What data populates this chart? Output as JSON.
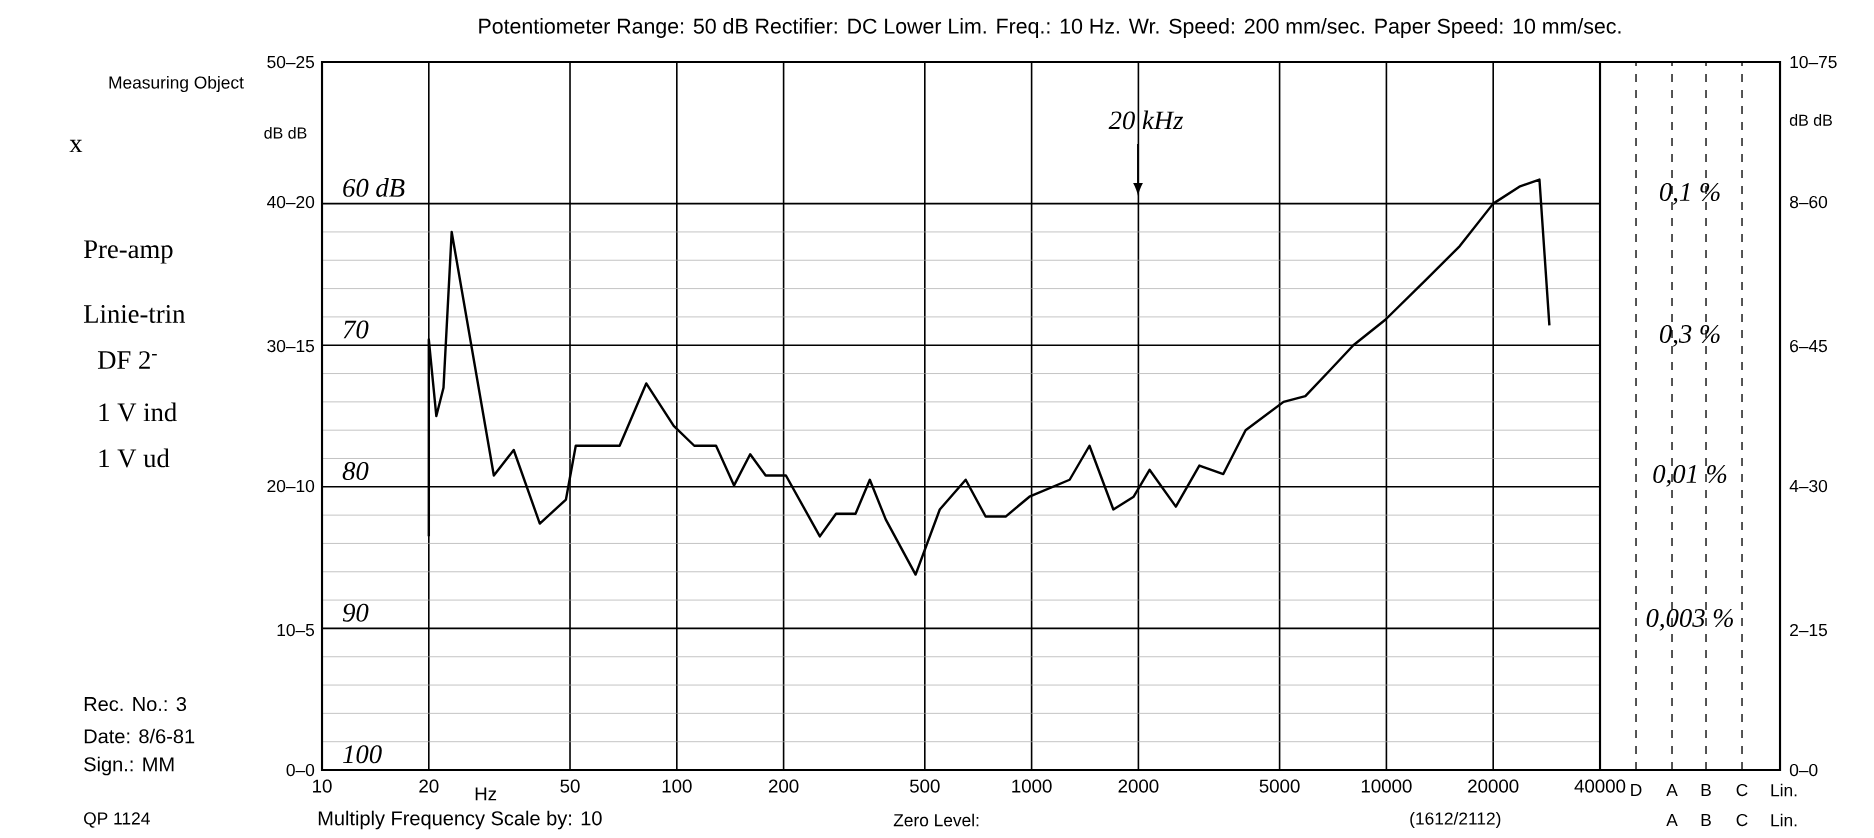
{
  "chart_data": {
    "type": "line",
    "title": "Potentiometer Range: 50 dB Rectifier: DC Lower Lim. Freq.: 10 Hz. Wr. Speed: 200 mm/sec. Paper Speed: 10 mm/sec.",
    "xlabel": "Hz",
    "ylabel": "dB dB",
    "series": [
      {
        "color": "#000000",
        "x": [
          20,
          20,
          21,
          22,
          23.2,
          30.5,
          34.7,
          41.1,
          48.7,
          51.9,
          69,
          82,
          98,
          112,
          129,
          145,
          161,
          178,
          203,
          253,
          281,
          319,
          350,
          388,
          471,
          551,
          652,
          742,
          845,
          986,
          1280,
          1456,
          1700,
          1940,
          2150,
          2550,
          2970,
          3470,
          4010,
          5130,
          5910,
          6910,
          8070,
          9930,
          12900,
          16100,
          20000,
          23700,
          27000,
          28800
        ],
        "values": [
          83.5,
          69.6,
          75,
          73,
          62.0,
          79.2,
          77.4,
          82.6,
          80.9,
          77.1,
          77.1,
          72.7,
          75.7,
          77.1,
          77.1,
          79.9,
          77.7,
          79.2,
          79.2,
          83.5,
          81.9,
          81.9,
          79.5,
          82.3,
          86.2,
          81.6,
          79.5,
          82.1,
          82.1,
          80.7,
          79.5,
          77.1,
          81.6,
          80.7,
          78.8,
          81.4,
          78.5,
          79.1,
          76.0,
          74.0,
          73.6,
          71.8,
          70.0,
          68.2,
          65.4,
          63.0,
          60.0,
          58.8,
          58.3,
          68.6
        ]
      }
    ],
    "log": "x",
    "xlim": [
      10,
      40000
    ],
    "xticks": [
      10,
      20,
      50,
      100,
      200,
      500,
      1000,
      2000,
      5000,
      10000,
      20000,
      40000
    ],
    "ylim": [
      100,
      50
    ],
    "yticks": [
      {
        "value": 60,
        "label": "60 dB"
      },
      70,
      80,
      90,
      100
    ],
    "grid": true,
    "annotations": [
      "Measuring Object",
      "x",
      "Pre-amp",
      "Linie-trin",
      "DF 2$^{-}$",
      "1 V ind",
      "1 V ud",
      "Rec. No.: 3",
      "Date: 8/6-81",
      "Sign.: MM",
      "QP 1124",
      "Multiply Frequency Scale by: 10",
      "Zero Level:",
      "(1612/2112)",
      "20 kHz",
      "D",
      "A",
      "B",
      "C",
      "Lin.",
      "A",
      "B",
      "C",
      "Lin.",
      "50–25",
      "40–20",
      "30–15",
      "20–10",
      "10–5",
      "0–0",
      "10–75",
      "8–60",
      "6–45",
      "4–30",
      "2–15",
      "0–0",
      "0,1 %",
      "0,3 %",
      "0,01 %",
      "0,003 %",
      "dB dB"
    ]
  }
}
